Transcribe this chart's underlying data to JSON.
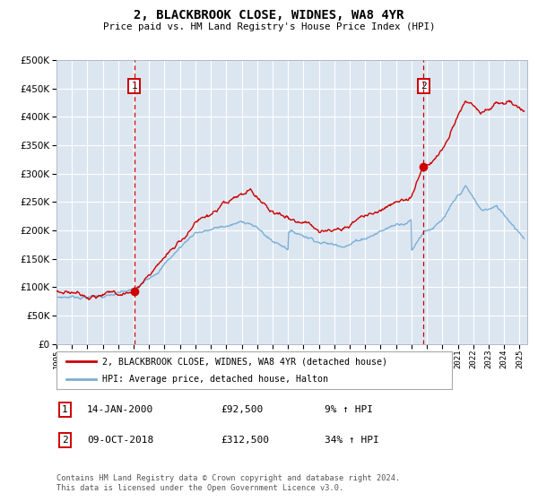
{
  "title": "2, BLACKBROOK CLOSE, WIDNES, WA8 4YR",
  "subtitle": "Price paid vs. HM Land Registry's House Price Index (HPI)",
  "ylim": [
    0,
    500000
  ],
  "xlim_start": 1995.0,
  "xlim_end": 2025.5,
  "sale1_x": 2000.04,
  "sale1_y": 92500,
  "sale1_label": "1",
  "sale1_date": "14-JAN-2000",
  "sale1_price": "£92,500",
  "sale1_hpi": "9% ↑ HPI",
  "sale2_x": 2018.77,
  "sale2_y": 312500,
  "sale2_label": "2",
  "sale2_date": "09-OCT-2018",
  "sale2_price": "£312,500",
  "sale2_hpi": "34% ↑ HPI",
  "legend_line1": "2, BLACKBROOK CLOSE, WIDNES, WA8 4YR (detached house)",
  "legend_line2": "HPI: Average price, detached house, Halton",
  "footer": "Contains HM Land Registry data © Crown copyright and database right 2024.\nThis data is licensed under the Open Government Licence v3.0.",
  "bg_color": "#dce6f1",
  "red_line_color": "#cc0000",
  "blue_line_color": "#7bafd4",
  "sale_marker_color": "#cc0000",
  "dashed_line_color": "#cc0000",
  "box_edge_color": "#cc0000"
}
